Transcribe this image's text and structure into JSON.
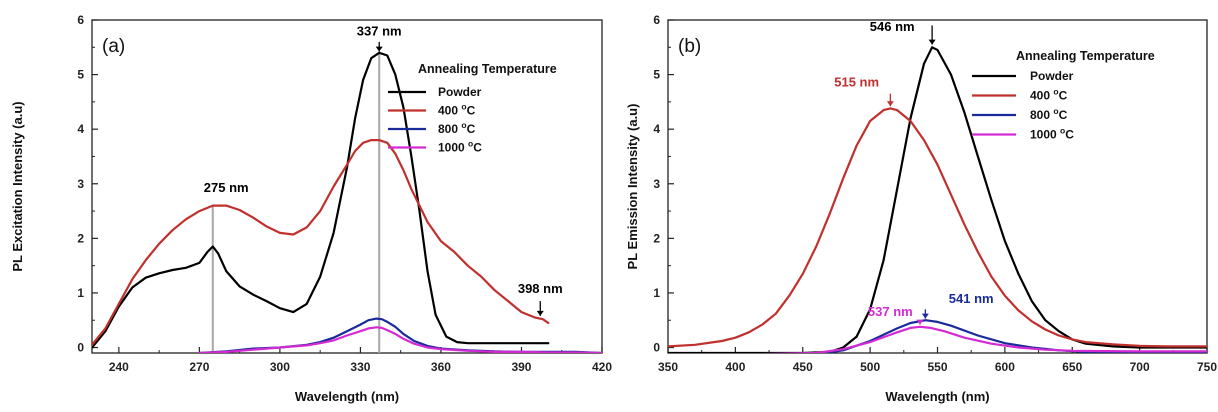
{
  "colors": {
    "powder": "#000000",
    "t400": "#c0302c",
    "t800": "#1a2a9a",
    "t1000": "#d42ad4",
    "marker": "#a8a8a8"
  },
  "chart_data": [
    {
      "type": "line",
      "panel_label": "(a)",
      "xlabel": "Wavelength (nm)",
      "ylabel": "PL Excitation Intensity (a.u)",
      "xlim": [
        230,
        420
      ],
      "ylim": [
        -0.1,
        6
      ],
      "xticks": [
        240,
        270,
        300,
        330,
        360,
        390,
        420
      ],
      "xtick_labels": [
        "240",
        "270",
        "300",
        "330",
        "360",
        "390",
        "420"
      ],
      "yticks": [
        0,
        1,
        2,
        3,
        4,
        5,
        6
      ],
      "ytick_labels": [
        "0",
        "1",
        "2",
        "3",
        "4",
        "5",
        "6"
      ],
      "legend": {
        "title": "Annealing Temperature",
        "position": "top-right",
        "entries": [
          {
            "label": "Powder",
            "color_key": "powder"
          },
          {
            "label": "400 °C",
            "color_key": "t400"
          },
          {
            "label": "800 °C",
            "color_key": "t800"
          },
          {
            "label": "1000 °C",
            "color_key": "t1000"
          }
        ]
      },
      "series": [
        {
          "name": "Powder",
          "color_key": "powder",
          "x": [
            230,
            235,
            240,
            245,
            250,
            255,
            260,
            265,
            270,
            273,
            275,
            277,
            280,
            285,
            290,
            295,
            300,
            305,
            310,
            315,
            320,
            325,
            328,
            331,
            334,
            337,
            340,
            343,
            346,
            349,
            352,
            355,
            358,
            362,
            366,
            370,
            380,
            390,
            400
          ],
          "y": [
            0,
            0.3,
            0.75,
            1.1,
            1.28,
            1.36,
            1.42,
            1.46,
            1.55,
            1.75,
            1.85,
            1.72,
            1.4,
            1.12,
            0.97,
            0.85,
            0.72,
            0.65,
            0.8,
            1.3,
            2.1,
            3.3,
            4.2,
            4.9,
            5.3,
            5.4,
            5.35,
            5.0,
            4.4,
            3.5,
            2.5,
            1.4,
            0.6,
            0.2,
            0.1,
            0.08,
            0.08,
            0.08,
            0.08
          ]
        },
        {
          "name": "400 °C",
          "color_key": "t400",
          "x": [
            230,
            235,
            240,
            245,
            250,
            255,
            260,
            265,
            270,
            275,
            280,
            285,
            290,
            295,
            300,
            305,
            310,
            315,
            320,
            325,
            328,
            331,
            334,
            337,
            340,
            343,
            346,
            349,
            352,
            355,
            360,
            365,
            370,
            375,
            380,
            385,
            390,
            395,
            398,
            400
          ],
          "y": [
            0.05,
            0.35,
            0.8,
            1.25,
            1.6,
            1.9,
            2.15,
            2.35,
            2.5,
            2.6,
            2.6,
            2.52,
            2.38,
            2.22,
            2.1,
            2.07,
            2.2,
            2.5,
            2.95,
            3.35,
            3.6,
            3.75,
            3.8,
            3.8,
            3.75,
            3.55,
            3.25,
            2.9,
            2.6,
            2.3,
            1.95,
            1.75,
            1.5,
            1.3,
            1.05,
            0.85,
            0.65,
            0.55,
            0.52,
            0.45
          ]
        },
        {
          "name": "800 °C",
          "color_key": "t800",
          "x": [
            270,
            280,
            290,
            300,
            310,
            315,
            320,
            325,
            330,
            333,
            336,
            338,
            340,
            343,
            346,
            350,
            355,
            360,
            370,
            380,
            390,
            400,
            410,
            420
          ],
          "y": [
            -0.1,
            -0.07,
            -0.02,
            0.0,
            0.05,
            0.1,
            0.18,
            0.3,
            0.42,
            0.5,
            0.53,
            0.52,
            0.47,
            0.38,
            0.25,
            0.12,
            0.03,
            -0.02,
            -0.05,
            -0.07,
            -0.08,
            -0.08,
            -0.08,
            -0.1
          ]
        },
        {
          "name": "1000 °C",
          "color_key": "t1000",
          "x": [
            270,
            280,
            290,
            300,
            310,
            315,
            320,
            325,
            330,
            333,
            336,
            338,
            340,
            343,
            346,
            350,
            355,
            360,
            370,
            380,
            390,
            400,
            410,
            420
          ],
          "y": [
            -0.1,
            -0.08,
            -0.04,
            0.0,
            0.04,
            0.08,
            0.13,
            0.22,
            0.3,
            0.35,
            0.37,
            0.36,
            0.32,
            0.25,
            0.16,
            0.07,
            0.0,
            -0.03,
            -0.06,
            -0.08,
            -0.08,
            -0.09,
            -0.09,
            -0.1
          ]
        }
      ],
      "markers": [
        {
          "type": "vline",
          "x": 275,
          "y": 2.6,
          "color_key": "marker"
        },
        {
          "type": "vline",
          "x": 337,
          "y": 5.4,
          "color_key": "marker"
        }
      ],
      "annotations": [
        {
          "text": "275 nm",
          "x": 280,
          "y": 2.85,
          "color_key": "powder",
          "anchor": "middle"
        },
        {
          "text": "337 nm",
          "x": 337,
          "y": 5.72,
          "color_key": "powder",
          "anchor": "middle",
          "arrow": {
            "y_from": 5.6,
            "y_to": 5.42
          }
        },
        {
          "text": "398 nm",
          "x": 397,
          "y": 1.0,
          "color_key": "powder",
          "anchor": "middle",
          "arrow": {
            "y_from": 0.85,
            "y_to": 0.58
          }
        }
      ]
    },
    {
      "type": "line",
      "panel_label": "(b)",
      "xlabel": "Wavelength (nm)",
      "ylabel": "PL Emission Intensity (a.u)",
      "xlim": [
        350,
        750
      ],
      "ylim": [
        -0.1,
        6
      ],
      "xticks": [
        350,
        400,
        450,
        500,
        550,
        600,
        650,
        700,
        750
      ],
      "xtick_labels": [
        "350",
        "400",
        "450",
        "500",
        "550",
        "600",
        "650",
        "700",
        "750"
      ],
      "yticks": [
        0,
        1,
        2,
        3,
        4,
        5,
        6
      ],
      "ytick_labels": [
        "0",
        "1",
        "2",
        "3",
        "4",
        "5",
        "6"
      ],
      "legend": {
        "title": "Annealing Temperature",
        "position": "top-right",
        "entries": [
          {
            "label": "Powder",
            "color_key": "powder"
          },
          {
            "label": "400 °C",
            "color_key": "t400"
          },
          {
            "label": "800 °C",
            "color_key": "t800"
          },
          {
            "label": "1000 °C",
            "color_key": "t1000"
          }
        ]
      },
      "series": [
        {
          "name": "Powder",
          "color_key": "powder",
          "x": [
            350,
            450,
            470,
            480,
            490,
            500,
            510,
            520,
            530,
            540,
            546,
            550,
            560,
            570,
            580,
            590,
            600,
            610,
            620,
            630,
            640,
            650,
            660,
            680,
            700,
            750
          ],
          "y": [
            -0.1,
            -0.1,
            -0.08,
            0.0,
            0.2,
            0.7,
            1.6,
            2.9,
            4.2,
            5.2,
            5.5,
            5.45,
            5.0,
            4.3,
            3.5,
            2.7,
            1.95,
            1.35,
            0.85,
            0.5,
            0.3,
            0.15,
            0.07,
            0.02,
            0.0,
            0.0
          ]
        },
        {
          "name": "400 °C",
          "color_key": "t400",
          "x": [
            350,
            370,
            390,
            400,
            410,
            420,
            430,
            440,
            450,
            460,
            470,
            480,
            490,
            500,
            510,
            515,
            520,
            530,
            540,
            550,
            560,
            570,
            580,
            590,
            600,
            610,
            620,
            630,
            640,
            650,
            660,
            680,
            700,
            720,
            750
          ],
          "y": [
            0.02,
            0.05,
            0.12,
            0.18,
            0.28,
            0.42,
            0.62,
            0.95,
            1.35,
            1.85,
            2.45,
            3.1,
            3.7,
            4.15,
            4.35,
            4.38,
            4.35,
            4.15,
            3.8,
            3.35,
            2.8,
            2.25,
            1.75,
            1.3,
            0.95,
            0.68,
            0.48,
            0.33,
            0.22,
            0.15,
            0.1,
            0.06,
            0.03,
            0.02,
            0.02
          ]
        },
        {
          "name": "800 °C",
          "color_key": "t800",
          "x": [
            350,
            420,
            460,
            480,
            500,
            520,
            530,
            541,
            550,
            560,
            580,
            600,
            620,
            640,
            660,
            700,
            750
          ],
          "y": [
            -0.15,
            -0.15,
            -0.12,
            -0.05,
            0.12,
            0.35,
            0.45,
            0.5,
            0.47,
            0.4,
            0.22,
            0.08,
            0.0,
            -0.05,
            -0.08,
            -0.1,
            -0.1
          ]
        },
        {
          "name": "1000 °C",
          "color_key": "t1000",
          "x": [
            350,
            420,
            460,
            480,
            500,
            520,
            530,
            537,
            545,
            555,
            570,
            590,
            610,
            630,
            650,
            700,
            750
          ],
          "y": [
            -0.12,
            -0.12,
            -0.1,
            -0.03,
            0.1,
            0.28,
            0.36,
            0.38,
            0.36,
            0.3,
            0.18,
            0.07,
            0.0,
            -0.04,
            -0.06,
            -0.07,
            -0.07
          ]
        }
      ],
      "markers": [],
      "annotations": [
        {
          "text": "546 nm",
          "x": 533,
          "y": 5.8,
          "color_key": "powder",
          "anchor": "end",
          "arrow": {
            "x": 546,
            "y_from": 5.9,
            "y_to": 5.55
          }
        },
        {
          "text": "515 nm",
          "x": 490,
          "y": 4.78,
          "color_key": "t400",
          "anchor": "middle",
          "arrow": {
            "x": 515,
            "y_from": 4.65,
            "y_to": 4.42
          }
        },
        {
          "text": "541 nm",
          "x": 575,
          "y": 0.82,
          "color_key": "t800",
          "anchor": "middle",
          "arrow": {
            "x": 541,
            "y_from": 0.7,
            "y_to": 0.53
          }
        },
        {
          "text": "537 nm",
          "x": 515,
          "y": 0.58,
          "color_key": "t1000",
          "anchor": "middle",
          "arrow": {
            "x": 537,
            "y_from": 0.5,
            "y_to": 0.42
          }
        }
      ]
    }
  ]
}
